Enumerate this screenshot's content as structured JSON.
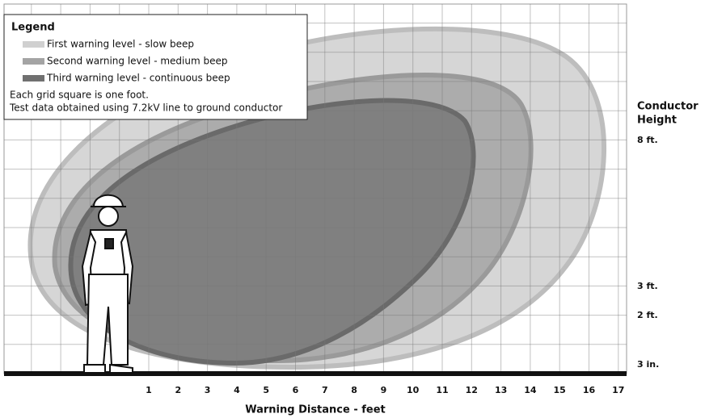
{
  "legend": {
    "title": "Legend",
    "items": [
      "First warning level - slow beep",
      "Second warning level - medium beep",
      "Third warning level - continuous beep"
    ],
    "notes": [
      "Each grid square is one foot.",
      "Test data obtained using 7.2kV line to ground conductor"
    ]
  },
  "height_axis": {
    "title_lines": [
      "Conductor",
      "Height"
    ],
    "labels": [
      "8 ft.",
      "3 ft.",
      "2 ft.",
      "3 in."
    ]
  },
  "distance_axis": {
    "title": "Warning Distance - feet",
    "ticks": [
      1,
      2,
      3,
      4,
      5,
      6,
      7,
      8,
      9,
      10,
      11,
      12,
      13,
      14,
      15,
      16,
      17
    ]
  }
}
